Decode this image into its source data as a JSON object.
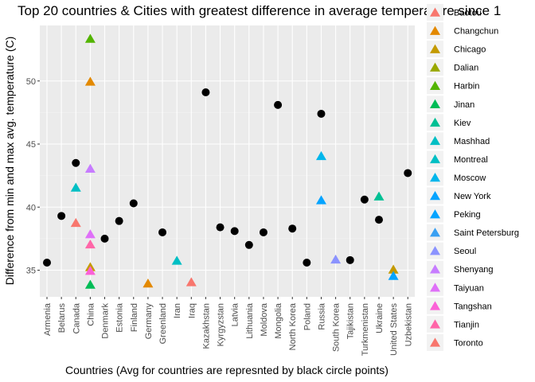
{
  "chart_data": {
    "type": "scatter",
    "title": "Top 20 countries & Cities with greatest difference in average temperature since 1",
    "xlabel": "Countries (Avg for countries are represnted by black circle points)",
    "ylabel": "Difference from min and max avg. temperature (C)",
    "ylim": [
      32.8,
      54.0
    ],
    "yticks": [
      35,
      40,
      45,
      50
    ],
    "grid": true,
    "legend_position": "right",
    "categories": [
      "Armenia",
      "Belarus",
      "Canada",
      "China",
      "Denmark",
      "Estonia",
      "Finland",
      "Germany",
      "Greenland",
      "Iran",
      "Iraq",
      "Kazakhstan",
      "Kyrgyzstan",
      "Latvia",
      "Lithuania",
      "Moldova",
      "Mongolia",
      "North Korea",
      "Poland",
      "Russia",
      "South Korea",
      "Tajikistan",
      "Turkmenistan",
      "Ukraine",
      "United States",
      "Uzbekistan"
    ],
    "country_avg": {
      "color": "#000000",
      "points": [
        {
          "x": "Armenia",
          "y": 35.6
        },
        {
          "x": "Belarus",
          "y": 39.3
        },
        {
          "x": "Canada",
          "y": 43.5
        },
        {
          "x": "Denmark",
          "y": 37.5
        },
        {
          "x": "Estonia",
          "y": 38.9
        },
        {
          "x": "Finland",
          "y": 40.3
        },
        {
          "x": "Greenland",
          "y": 38.0
        },
        {
          "x": "Kazakhstan",
          "y": 49.1
        },
        {
          "x": "Kyrgyzstan",
          "y": 38.4
        },
        {
          "x": "Latvia",
          "y": 38.1
        },
        {
          "x": "Lithuania",
          "y": 37.0
        },
        {
          "x": "Moldova",
          "y": 38.0
        },
        {
          "x": "Mongolia",
          "y": 48.1
        },
        {
          "x": "North Korea",
          "y": 38.3
        },
        {
          "x": "Poland",
          "y": 35.6
        },
        {
          "x": "Russia",
          "y": 47.4
        },
        {
          "x": "Tajikistan",
          "y": 35.8
        },
        {
          "x": "Turkmenistan",
          "y": 40.6
        },
        {
          "x": "Ukraine",
          "y": 39.0
        },
        {
          "x": "Uzbekistan",
          "y": 42.7
        }
      ]
    },
    "series": [
      {
        "name": "Baotou",
        "color": "#F8766D",
        "points": []
      },
      {
        "name": "Changchun",
        "color": "#E38900",
        "points": [
          {
            "x": "China",
            "y": 49.9
          },
          {
            "x": "Germany",
            "y": 33.9
          }
        ]
      },
      {
        "name": "Chicago",
        "color": "#C49A00",
        "points": [
          {
            "x": "China",
            "y": 35.2
          },
          {
            "x": "United States",
            "y": 35.0
          }
        ]
      },
      {
        "name": "Dalian",
        "color": "#99A800",
        "points": []
      },
      {
        "name": "Harbin",
        "color": "#53B400",
        "points": [
          {
            "x": "China",
            "y": 53.3
          }
        ]
      },
      {
        "name": "Jinan",
        "color": "#00BC56",
        "points": [
          {
            "x": "China",
            "y": 33.8
          }
        ]
      },
      {
        "name": "Kiev",
        "color": "#00C094",
        "points": [
          {
            "x": "Ukraine",
            "y": 40.8
          }
        ]
      },
      {
        "name": "Mashhad",
        "color": "#00BFC4",
        "points": [
          {
            "x": "Iran",
            "y": 35.7
          }
        ]
      },
      {
        "name": "Montreal",
        "color": "#00BFC4",
        "points": [
          {
            "x": "Canada",
            "y": 41.5
          }
        ]
      },
      {
        "name": "Moscow",
        "color": "#00B6EB",
        "points": [
          {
            "x": "Russia",
            "y": 44.0
          }
        ]
      },
      {
        "name": "New York",
        "color": "#06A4FF",
        "points": [
          {
            "x": "United States",
            "y": 34.5
          }
        ]
      },
      {
        "name": "Peking",
        "color": "#06A4FF",
        "points": [
          {
            "x": "Russia",
            "y": 40.5
          }
        ]
      },
      {
        "name": "Saint Petersburg",
        "color": "#39A0F2",
        "points": []
      },
      {
        "name": "Seoul",
        "color": "#8B93FF",
        "points": [
          {
            "x": "South Korea",
            "y": 35.8
          }
        ]
      },
      {
        "name": "Shenyang",
        "color": "#C77CFF",
        "points": [
          {
            "x": "China",
            "y": 43.0
          }
        ]
      },
      {
        "name": "Taiyuan",
        "color": "#DF70F8",
        "points": [
          {
            "x": "China",
            "y": 37.8
          }
        ]
      },
      {
        "name": "Tangshan",
        "color": "#FB61D7",
        "points": [
          {
            "x": "China",
            "y": 34.9
          }
        ]
      },
      {
        "name": "Tianjin",
        "color": "#FF66A8",
        "points": [
          {
            "x": "China",
            "y": 37.0
          }
        ]
      },
      {
        "name": "Toronto",
        "color": "#F8766D",
        "points": [
          {
            "x": "Canada",
            "y": 38.7
          },
          {
            "x": "Iraq",
            "y": 34.0
          }
        ]
      }
    ]
  }
}
